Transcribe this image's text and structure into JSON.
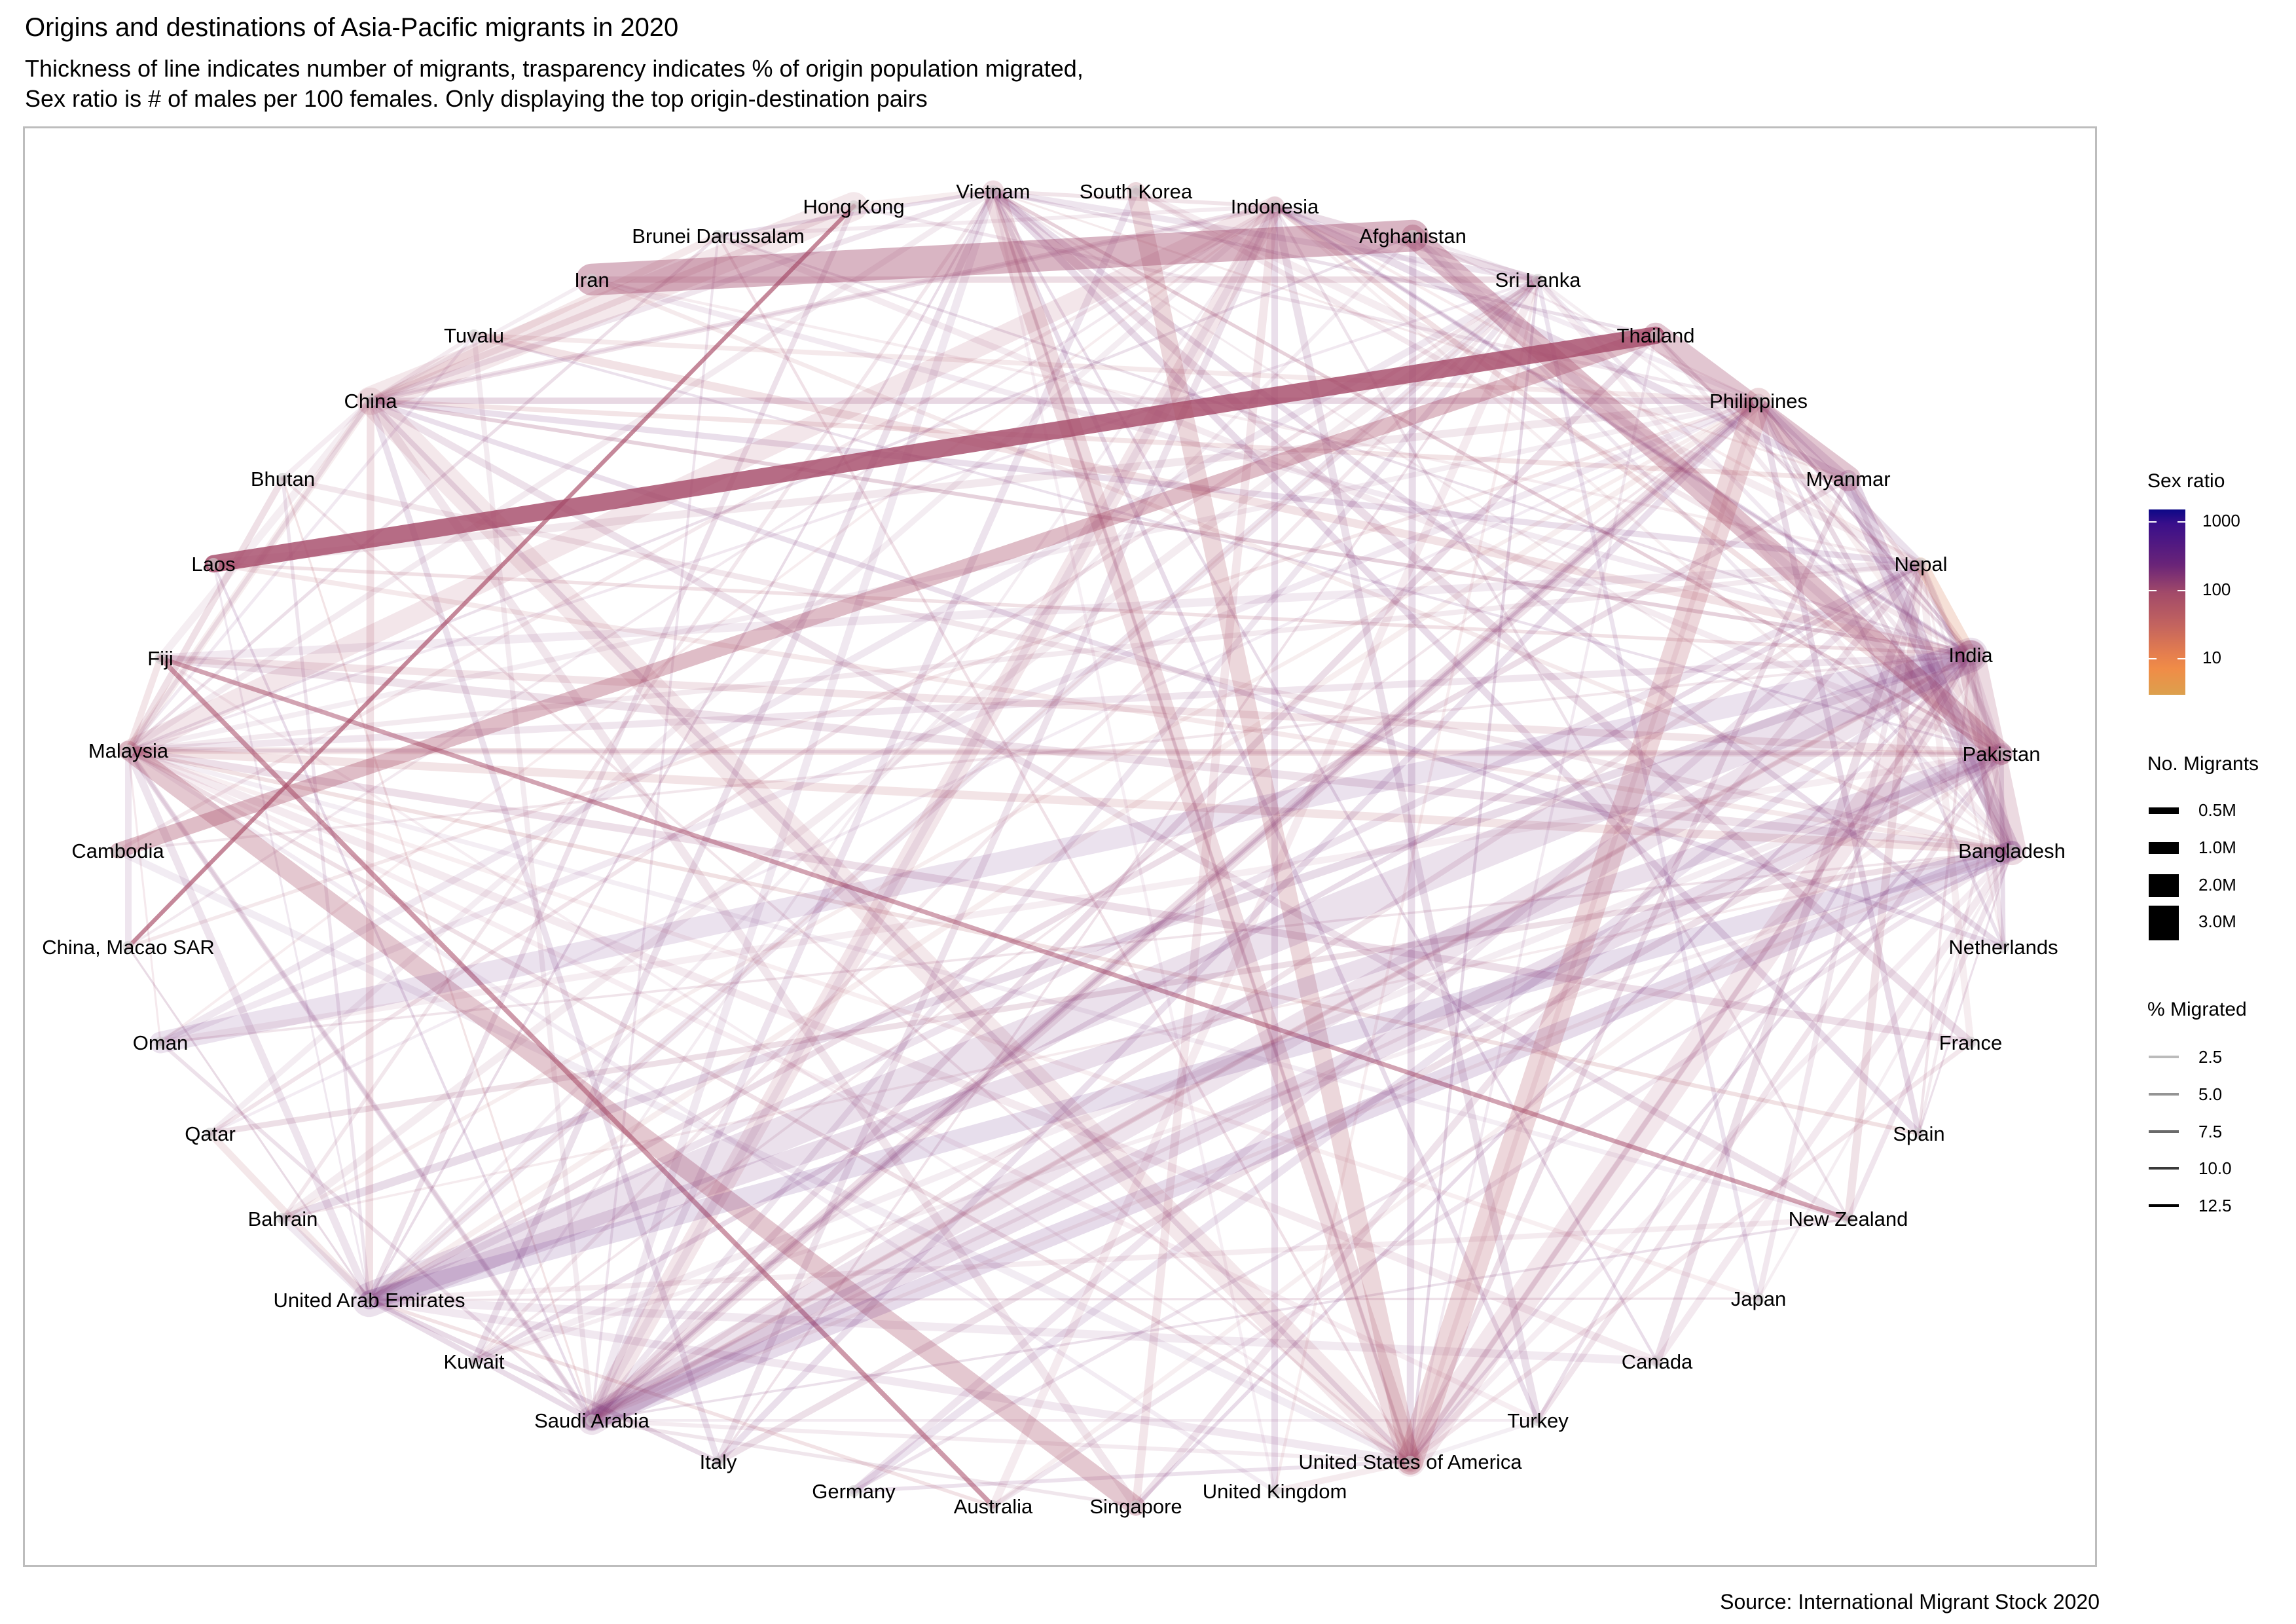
{
  "chart_data": {
    "type": "network",
    "title": "Origins and destinations of Asia-Pacific migrants in 2020",
    "subtitle": "Thickness of line indicates number of migrants, trasparency indicates % of origin population migrated,\nSex ratio is # of males per 100 females. Only displaying the top origin-destination pairs",
    "caption": "Source: International Migrant Stock 2020",
    "layout": "circle",
    "nodes": [
      "Hong Kong",
      "Vietnam",
      "South Korea",
      "Indonesia",
      "Afghanistan",
      "Sri Lanka",
      "Thailand",
      "Philippines",
      "Myanmar",
      "Nepal",
      "India",
      "Pakistan",
      "Bangladesh",
      "Netherlands",
      "France",
      "Spain",
      "New Zealand",
      "Japan",
      "Canada",
      "Turkey",
      "United States of America",
      "United Kingdom",
      "Singapore",
      "Australia",
      "Germany",
      "Italy",
      "Saudi Arabia",
      "Kuwait",
      "United Arab Emirates",
      "Bahrain",
      "Qatar",
      "Oman",
      "China, Macao SAR",
      "Cambodia",
      "Malaysia",
      "Fiji",
      "Laos",
      "Bhutan",
      "China",
      "Tuvalu",
      "Iran",
      "Brunei Darussalam"
    ],
    "edges": [
      {
        "from": "Afghanistan",
        "to": "Iran",
        "migrants_m": 3.0,
        "pct_migrated": 5,
        "sex_ratio": 110
      },
      {
        "from": "Laos",
        "to": "Thailand",
        "migrants_m": 0.9,
        "pct_migrated": 12.5,
        "sex_ratio": 100
      },
      {
        "from": "Afghanistan",
        "to": "Pakistan",
        "migrants_m": 1.5,
        "pct_migrated": 4,
        "sex_ratio": 105
      },
      {
        "from": "Thailand",
        "to": "Myanmar",
        "migrants_m": 1.9,
        "pct_migrated": 3.5,
        "sex_ratio": 110
      },
      {
        "from": "Philippines",
        "to": "United States of America",
        "migrants_m": 2.0,
        "pct_migrated": 2,
        "sex_ratio": 70
      },
      {
        "from": "India",
        "to": "United Arab Emirates",
        "migrants_m": 3.5,
        "pct_migrated": 0.3,
        "sex_ratio": 300
      },
      {
        "from": "India",
        "to": "Saudi Arabia",
        "migrants_m": 2.5,
        "pct_migrated": 0.2,
        "sex_ratio": 250
      },
      {
        "from": "India",
        "to": "United States of America",
        "migrants_m": 2.7,
        "pct_migrated": 0.2,
        "sex_ratio": 110
      },
      {
        "from": "China",
        "to": "United States of America",
        "migrants_m": 2.1,
        "pct_migrated": 0.15,
        "sex_ratio": 85
      },
      {
        "from": "China",
        "to": "Hong Kong",
        "migrants_m": 2.4,
        "pct_migrated": 0.2,
        "sex_ratio": 80
      },
      {
        "from": "Vietnam",
        "to": "United States of America",
        "migrants_m": 1.4,
        "pct_migrated": 1.5,
        "sex_ratio": 85
      },
      {
        "from": "South Korea",
        "to": "United States of America",
        "migrants_m": 1.0,
        "pct_migrated": 2,
        "sex_ratio": 75
      },
      {
        "from": "Malaysia",
        "to": "Singapore",
        "migrants_m": 1.1,
        "pct_migrated": 3.5,
        "sex_ratio": 90
      },
      {
        "from": "Indonesia",
        "to": "Saudi Arabia",
        "migrants_m": 1.1,
        "pct_migrated": 0.4,
        "sex_ratio": 90
      },
      {
        "from": "Indonesia",
        "to": "Malaysia",
        "migrants_m": 1.2,
        "pct_migrated": 0.4,
        "sex_ratio": 90
      },
      {
        "from": "Cambodia",
        "to": "Thailand",
        "migrants_m": 0.7,
        "pct_migrated": 4.5,
        "sex_ratio": 95
      },
      {
        "from": "Bangladesh",
        "to": "India",
        "migrants_m": 2.5,
        "pct_migrated": 1.5,
        "sex_ratio": 110
      },
      {
        "from": "Pakistan",
        "to": "Saudi Arabia",
        "migrants_m": 1.4,
        "pct_migrated": 0.6,
        "sex_ratio": 280
      },
      {
        "from": "Pakistan",
        "to": "United Arab Emirates",
        "migrants_m": 1.0,
        "pct_migrated": 0.5,
        "sex_ratio": 300
      },
      {
        "from": "Bangladesh",
        "to": "Saudi Arabia",
        "migrants_m": 1.2,
        "pct_migrated": 0.7,
        "sex_ratio": 400
      },
      {
        "from": "Bangladesh",
        "to": "United Arab Emirates",
        "migrants_m": 1.1,
        "pct_migrated": 0.6,
        "sex_ratio": 450
      },
      {
        "from": "India",
        "to": "Oman",
        "migrants_m": 1.4,
        "pct_migrated": 0.1,
        "sex_ratio": 400
      },
      {
        "from": "Myanmar",
        "to": "Bangladesh",
        "migrants_m": 0.9,
        "pct_migrated": 1.5,
        "sex_ratio": 300
      },
      {
        "from": "Nepal",
        "to": "India",
        "migrants_m": 0.5,
        "pct_migrated": 2,
        "sex_ratio": 20
      },
      {
        "from": "Philippines",
        "to": "Saudi Arabia",
        "migrants_m": 0.6,
        "pct_migrated": 0.5,
        "sex_ratio": 150
      },
      {
        "from": "Fiji",
        "to": "Australia",
        "migrants_m": 0.07,
        "pct_migrated": 8,
        "sex_ratio": 95
      },
      {
        "from": "China, Macao SAR",
        "to": "Hong Kong",
        "migrants_m": 0.05,
        "pct_migrated": 10,
        "sex_ratio": 90
      },
      {
        "from": "Fiji",
        "to": "New Zealand",
        "migrants_m": 0.06,
        "pct_migrated": 7,
        "sex_ratio": 95
      }
    ],
    "legend": {
      "color": {
        "title": "Sex ratio",
        "scale": "log10",
        "ticks": [
          1000,
          100,
          10
        ],
        "colormap": [
          "#0d0887",
          "#7e2e78",
          "#b05a60",
          "#f0894a",
          "#dca04d"
        ]
      },
      "width": {
        "title": "No. Migrants",
        "entries": [
          "0.5M",
          "1.0M",
          "2.0M",
          "3.0M"
        ]
      },
      "alpha": {
        "title": "% Migrated",
        "entries": [
          "2.5",
          "5.0",
          "7.5",
          "10.0",
          "12.5"
        ]
      }
    }
  },
  "labels": {
    "title": "Origins and destinations of Asia-Pacific migrants in 2020",
    "subtitle": "Thickness of line indicates number of migrants, trasparency indicates % of origin population migrated,\nSex ratio is # of males per 100 females. Only displaying the top origin-destination pairs",
    "caption": "Source: International Migrant Stock 2020",
    "legend_sex_title": "Sex ratio",
    "legend_sex_ticks": [
      "1000",
      "100",
      "10"
    ],
    "legend_num_title": "No. Migrants",
    "legend_num": [
      "0.5M",
      "1.0M",
      "2.0M",
      "3.0M"
    ],
    "legend_pct_title": "% Migrated",
    "legend_pct": [
      "2.5",
      "5.0",
      "7.5",
      "10.0",
      "12.5"
    ]
  }
}
